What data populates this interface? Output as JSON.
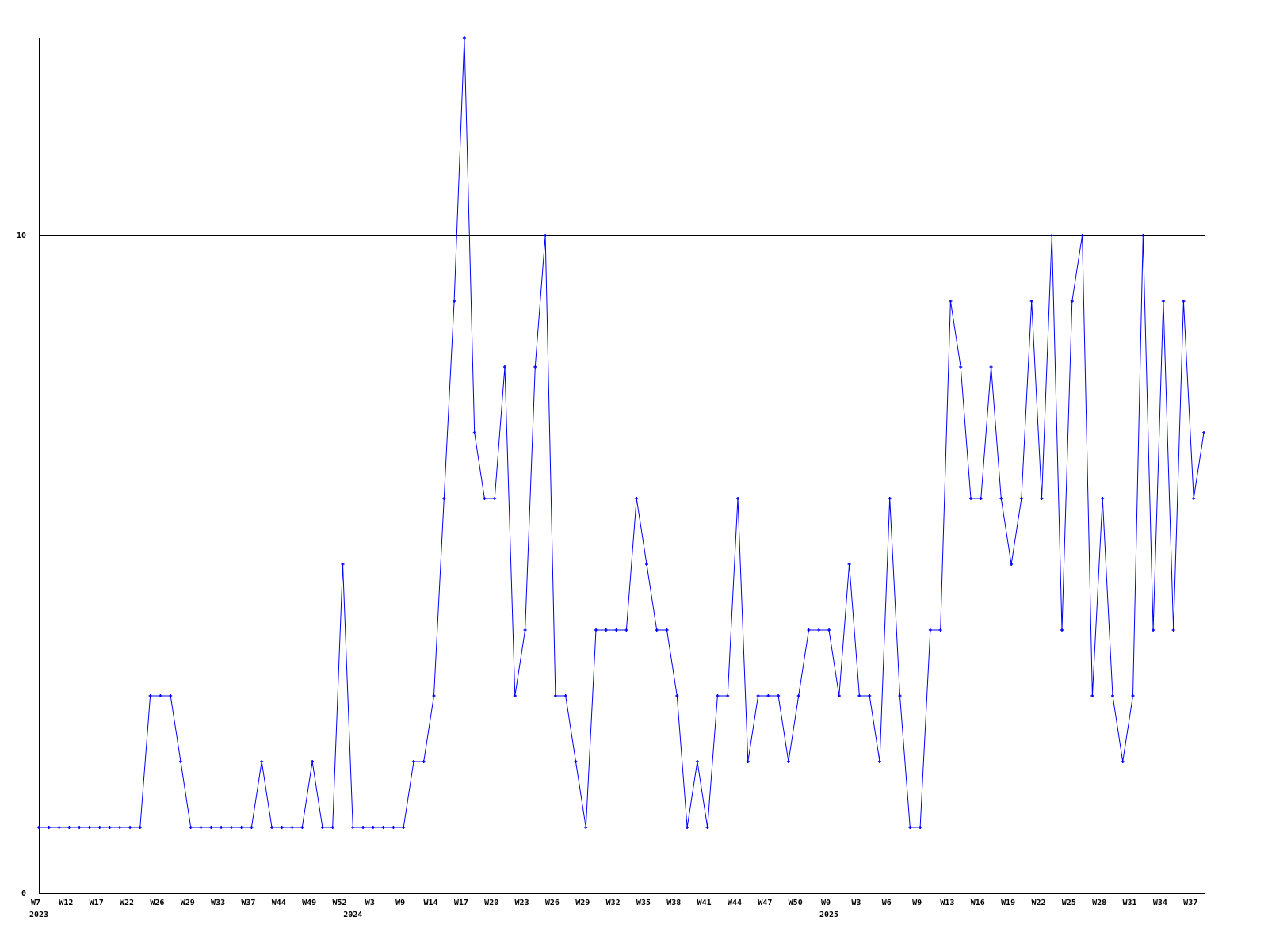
{
  "chart_data": {
    "type": "line",
    "title": "",
    "xlabel": "",
    "ylabel": "",
    "ylim": [
      0,
      13
    ],
    "y_ticks": [
      {
        "value": 0,
        "label": "0"
      },
      {
        "value": 10,
        "label": "10"
      }
    ],
    "grid": "horizontal line at 10",
    "line_color": "#0000ff",
    "axis_color": "#000000",
    "x_tick_every": 3,
    "x_tick_labels": [
      "W7",
      "W12",
      "W17",
      "W22",
      "W26",
      "W29",
      "W33",
      "W37",
      "W44",
      "W49",
      "W52",
      "W3",
      "W9",
      "W14",
      "W17",
      "W20",
      "W23",
      "W26",
      "W29",
      "W32",
      "W35",
      "W38",
      "W41",
      "W44",
      "W47",
      "W50",
      "W0",
      "W3",
      "W6",
      "W9",
      "W13",
      "W16",
      "W19",
      "W22",
      "W25",
      "W28",
      "W31",
      "W34",
      "W37"
    ],
    "year_labels": [
      {
        "label": "2023",
        "point": 0
      },
      {
        "label": "2024",
        "point": 31
      },
      {
        "label": "2025",
        "point": 78
      }
    ],
    "series": [
      {
        "values": [
          1,
          1,
          1,
          1,
          1,
          1,
          1,
          1,
          1,
          1,
          1,
          3,
          3,
          3,
          2,
          1,
          1,
          1,
          1,
          1,
          1,
          1,
          2,
          1,
          1,
          1,
          1,
          2,
          1,
          1,
          5,
          1,
          1,
          1,
          1,
          1,
          1,
          2,
          2,
          3,
          6,
          9,
          13,
          7,
          6,
          6,
          8,
          3,
          4,
          8,
          10,
          3,
          3,
          2,
          1,
          4,
          4,
          4,
          4,
          6,
          5,
          4,
          4,
          3,
          1,
          2,
          1,
          3,
          3,
          6,
          2,
          3,
          3,
          3,
          2,
          3,
          4,
          4,
          4,
          3,
          5,
          3,
          3,
          2,
          6,
          3,
          1,
          1,
          4,
          4,
          9,
          8,
          6,
          6,
          8,
          6,
          5,
          6,
          9,
          6,
          10,
          4,
          9,
          10,
          3,
          6,
          3,
          2,
          3,
          10,
          4,
          9,
          4,
          9,
          6,
          7
        ]
      }
    ]
  }
}
